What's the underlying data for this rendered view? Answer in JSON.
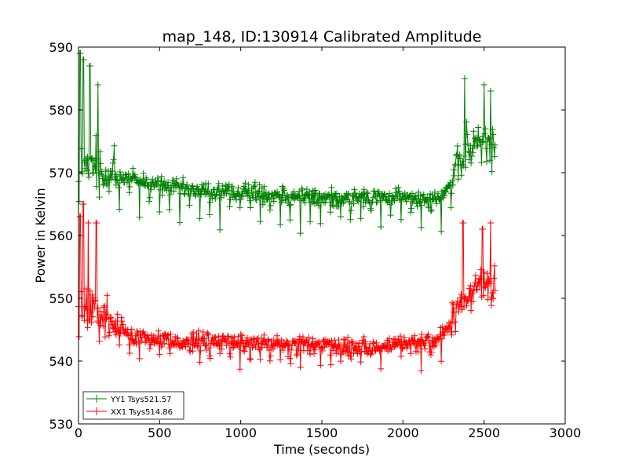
{
  "chart_data": {
    "type": "line",
    "title": "map_148, ID:130914 Calibrated Amplitude",
    "xlabel": "Time (seconds)",
    "ylabel": "Power in Kelvin",
    "xlim": [
      0,
      3000
    ],
    "ylim": [
      530,
      590
    ],
    "xticks": [
      0,
      500,
      1000,
      1500,
      2000,
      2500,
      3000
    ],
    "yticks": [
      530,
      540,
      550,
      560,
      570,
      580,
      590
    ],
    "marker": "+",
    "legend_position": "lower-left",
    "series": [
      {
        "name": "YY1 Tsys521.57",
        "color": "#008000",
        "x_range": [
          0,
          2570
        ],
        "baseline_points": [
          [
            0,
            571
          ],
          [
            100,
            570.5
          ],
          [
            250,
            569.5
          ],
          [
            500,
            568
          ],
          [
            750,
            567
          ],
          [
            1000,
            567
          ],
          [
            1250,
            566.5
          ],
          [
            1500,
            566
          ],
          [
            1750,
            566
          ],
          [
            2000,
            566
          ],
          [
            2200,
            566
          ],
          [
            2280,
            567.5
          ],
          [
            2350,
            572
          ],
          [
            2450,
            575
          ],
          [
            2570,
            575
          ]
        ],
        "dip_amplitude": 6,
        "spike_peaks": [
          [
            10,
            589
          ],
          [
            30,
            588
          ],
          [
            70,
            587
          ],
          [
            120,
            584
          ],
          [
            2380,
            585
          ],
          [
            2500,
            584
          ],
          [
            2540,
            583
          ]
        ]
      },
      {
        "name": "XX1 Tsys514.86",
        "color": "#ff0000",
        "x_range": [
          0,
          2570
        ],
        "baseline_points": [
          [
            0,
            549
          ],
          [
            100,
            548
          ],
          [
            200,
            546
          ],
          [
            350,
            544
          ],
          [
            500,
            543.5
          ],
          [
            750,
            543
          ],
          [
            1000,
            543
          ],
          [
            1250,
            542.5
          ],
          [
            1500,
            542.5
          ],
          [
            1750,
            542
          ],
          [
            2000,
            543
          ],
          [
            2200,
            543
          ],
          [
            2280,
            545
          ],
          [
            2350,
            549
          ],
          [
            2450,
            552
          ],
          [
            2570,
            552
          ]
        ],
        "dip_amplitude": 4,
        "spike_peaks": [
          [
            10,
            563
          ],
          [
            30,
            565
          ],
          [
            60,
            562
          ],
          [
            110,
            562
          ],
          [
            2370,
            562
          ],
          [
            2490,
            561
          ],
          [
            2540,
            562
          ]
        ]
      }
    ]
  }
}
